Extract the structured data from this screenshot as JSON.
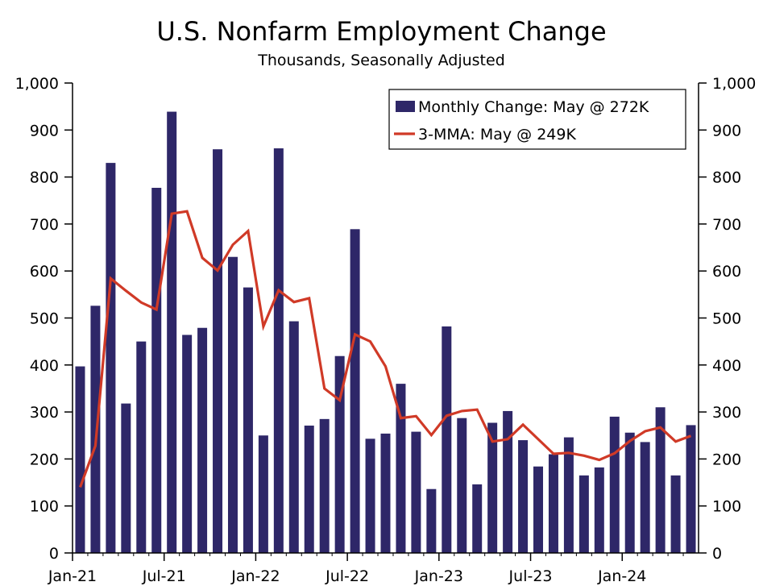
{
  "chart_data": {
    "type": "bar",
    "title": "U.S. Nonfarm Employment Change",
    "subtitle": "Thousands, Seasonally Adjusted",
    "ylim": [
      0,
      1000
    ],
    "y_ticks": [
      "0",
      "100",
      "200",
      "300",
      "400",
      "500",
      "600",
      "700",
      "800",
      "900",
      "1,000"
    ],
    "x_tick_labels": [
      "Jan-21",
      "Jul-21",
      "Jan-22",
      "Jul-22",
      "Jan-23",
      "Jul-23",
      "Jan-24"
    ],
    "x_tick_indices": [
      0,
      6,
      12,
      18,
      24,
      30,
      36
    ],
    "categories": [
      "Jan-21",
      "Feb-21",
      "Mar-21",
      "Apr-21",
      "May-21",
      "Jun-21",
      "Jul-21",
      "Aug-21",
      "Sep-21",
      "Oct-21",
      "Nov-21",
      "Dec-21",
      "Jan-22",
      "Feb-22",
      "Mar-22",
      "Apr-22",
      "May-22",
      "Jun-22",
      "Jul-22",
      "Aug-22",
      "Sep-22",
      "Oct-22",
      "Nov-22",
      "Dec-22",
      "Jan-23",
      "Feb-23",
      "Mar-23",
      "Apr-23",
      "May-23",
      "Jun-23",
      "Jul-23",
      "Aug-23",
      "Sep-23",
      "Oct-23",
      "Nov-23",
      "Dec-23",
      "Jan-24",
      "Feb-24",
      "Mar-24",
      "Apr-24",
      "May-24"
    ],
    "series": [
      {
        "name": "Monthly Change: May @ 272K",
        "kind": "bar",
        "color": "#2e2768",
        "values": [
          397,
          526,
          830,
          318,
          450,
          777,
          939,
          464,
          479,
          859,
          630,
          565,
          250,
          861,
          493,
          271,
          285,
          419,
          689,
          243,
          254,
          360,
          258,
          136,
          482,
          287,
          146,
          277,
          302,
          240,
          184,
          210,
          246,
          165,
          182,
          290,
          256,
          236,
          310,
          165,
          272
        ]
      },
      {
        "name": "3-MMA: May @ 249K",
        "kind": "line",
        "color": "#d03a27",
        "values": [
          140,
          228,
          584,
          558,
          533,
          518,
          722,
          727,
          628,
          601,
          656,
          685,
          482,
          559,
          534,
          542,
          350,
          325,
          465,
          450,
          397,
          287,
          291,
          251,
          292,
          302,
          305,
          237,
          242,
          273,
          242,
          211,
          213,
          207,
          198,
          212,
          238,
          259,
          267,
          237,
          249
        ]
      }
    ],
    "legend_position": "top-right",
    "grid": false
  }
}
